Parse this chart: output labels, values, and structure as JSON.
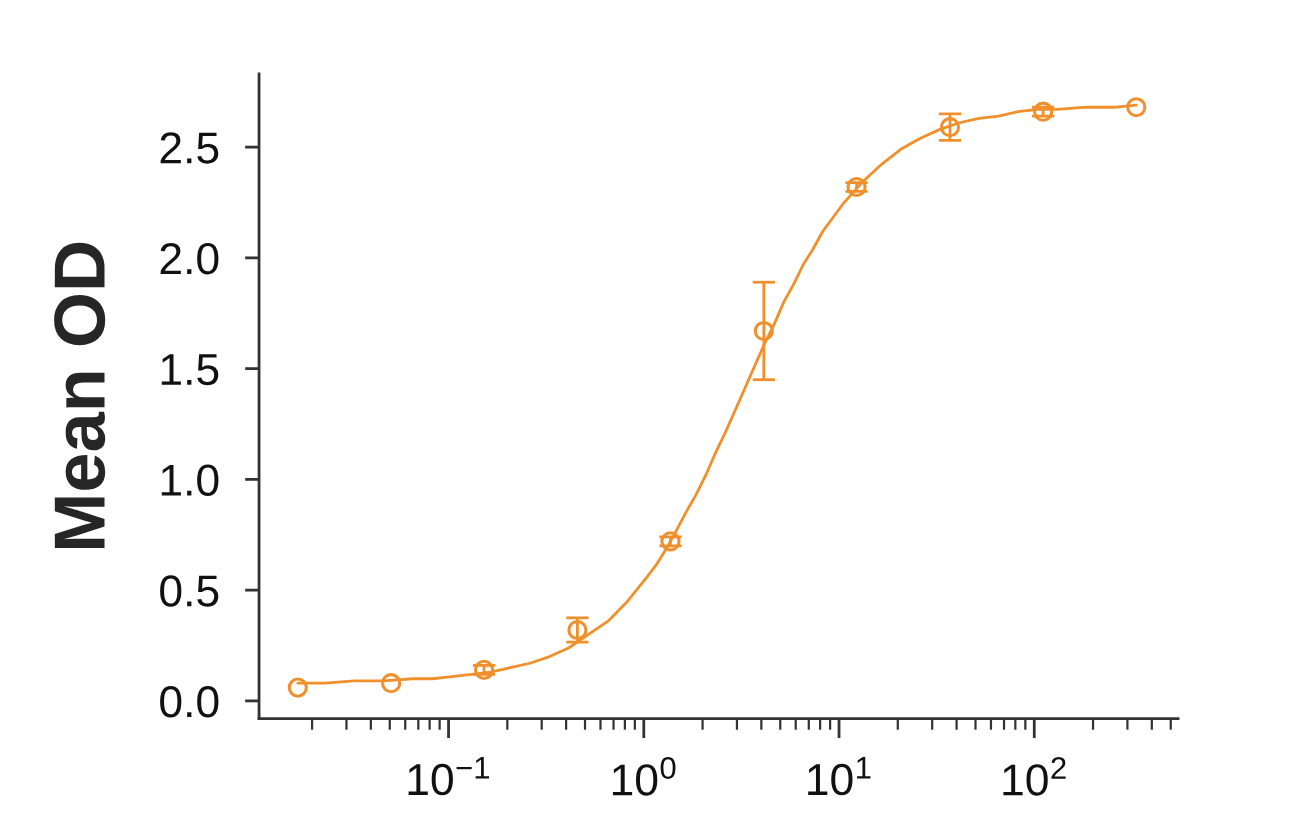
{
  "chart_data": {
    "type": "scatter",
    "ylabel": "Mean OD",
    "log": "x",
    "marker": "circle",
    "x": [
      0.0169,
      0.0508,
      0.152,
      0.457,
      1.37,
      4.12,
      12.3,
      37,
      111,
      333
    ],
    "xlim": [
      0.0107,
      545
    ],
    "xticks": [
      {
        "value": 0.1,
        "label": "10$^{−1}$"
      },
      {
        "value": 1,
        "label": "10$^{0}$"
      },
      {
        "value": 10,
        "label": "10$^{1}$"
      },
      {
        "value": 100,
        "label": "10$^{2}$"
      }
    ],
    "ylim": [
      -0.08,
      2.83
    ],
    "yticks": [
      {
        "value": 0,
        "label": "0.0"
      },
      0.5,
      {
        "value": 1,
        "label": "1.0"
      },
      1.5,
      {
        "value": 2,
        "label": "2.0"
      },
      2.5
    ],
    "series": [
      {
        "color": "#f0902c",
        "values": [
          0.06,
          0.08,
          0.14,
          0.32,
          0.72,
          1.67,
          2.32,
          2.59,
          2.66,
          2.68
        ],
        "errors": [
          null,
          null,
          0.02,
          0.055,
          0.02,
          0.22,
          0.02,
          0.06,
          0.02,
          null
        ]
      },
      {
        "type": "line",
        "marker": "none",
        "line_style": "solid",
        "color": "#f0902c",
        "x": [
          0.0169,
          0.0233,
          0.0329,
          0.0465,
          0.0656,
          0.0826,
          0.104,
          0.131,
          0.164,
          0.207,
          0.261,
          0.329,
          0.414,
          0.521,
          0.656,
          0.826,
          1.04,
          1.17,
          1.31,
          1.47,
          1.64,
          1.85,
          2.08,
          2.33,
          2.61,
          2.93,
          3.29,
          3.69,
          4.14,
          4.65,
          5.21,
          5.85,
          6.56,
          7.36,
          8.26,
          9.27,
          10.4,
          13.1,
          16.4,
          20.7,
          26.1,
          32.9,
          41.4,
          52.1,
          65.6,
          82.6,
          104,
          131,
          185,
          261,
          333
        ],
        "values": [
          0.08,
          0.08,
          0.09,
          0.09,
          0.1,
          0.1,
          0.11,
          0.12,
          0.13,
          0.15,
          0.17,
          0.2,
          0.24,
          0.3,
          0.36,
          0.45,
          0.56,
          0.62,
          0.69,
          0.77,
          0.85,
          0.93,
          1.02,
          1.12,
          1.21,
          1.31,
          1.41,
          1.51,
          1.61,
          1.7,
          1.8,
          1.88,
          1.97,
          2.04,
          2.12,
          2.18,
          2.24,
          2.34,
          2.42,
          2.49,
          2.54,
          2.58,
          2.61,
          2.63,
          2.64,
          2.66,
          2.67,
          2.67,
          2.68,
          2.68,
          2.69
        ]
      }
    ]
  }
}
